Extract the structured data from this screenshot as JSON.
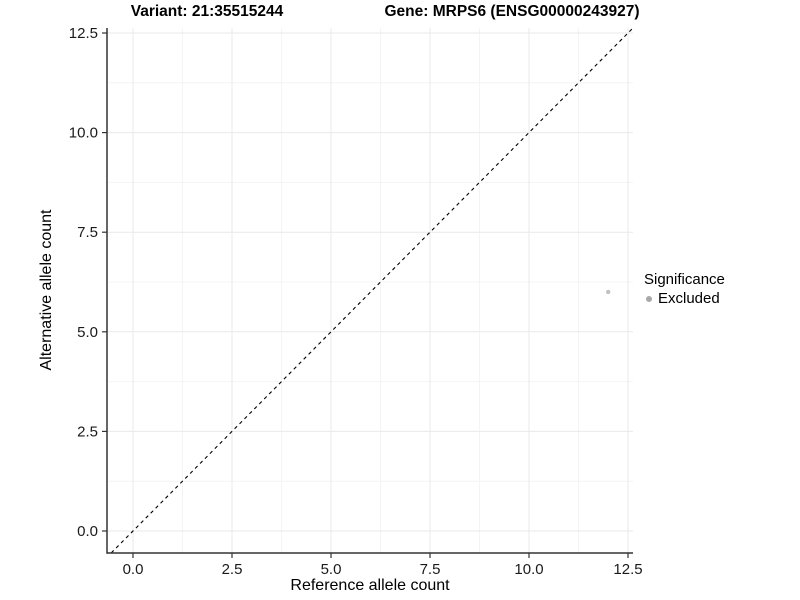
{
  "chart_data": {
    "type": "scatter",
    "title_left": "Variant: 21:35515244",
    "title_right": "Gene: MRPS6 (ENSG00000243927)",
    "xlabel": "Reference allele count",
    "ylabel": "Alternative allele count",
    "x_ticks": [
      0,
      2.5,
      5,
      7.5,
      10,
      12.5
    ],
    "x_tick_labels": [
      "0.0",
      "2.5",
      "5.0",
      "7.5",
      "10.0",
      "12.5"
    ],
    "y_ticks": [
      0,
      2.5,
      5,
      7.5,
      10,
      12.5
    ],
    "y_tick_labels": [
      "0.0",
      "2.5",
      "5.0",
      "7.5",
      "10.0",
      "12.5"
    ],
    "xlim": [
      -0.66,
      12.63
    ],
    "ylim": [
      -0.55,
      12.63
    ],
    "grid": true,
    "legend_position": "right",
    "series": [
      {
        "name": "Excluded",
        "color": "#c1c1c1",
        "point_radius": 2.2,
        "points": [
          [
            12,
            6
          ]
        ]
      }
    ],
    "reference_line": {
      "kind": "identity y=x",
      "style": "dashed",
      "color": "#000000"
    },
    "legend": {
      "title": "Significance",
      "items": [
        {
          "label": "Excluded",
          "color": "#a8a8a8"
        }
      ]
    },
    "colors": {
      "background": "#ffffff",
      "axis": "#333333",
      "tick_label": "#1a1a1a",
      "grid_major": "#e9e9e9",
      "grid_minor": "#f4f4f4"
    }
  }
}
